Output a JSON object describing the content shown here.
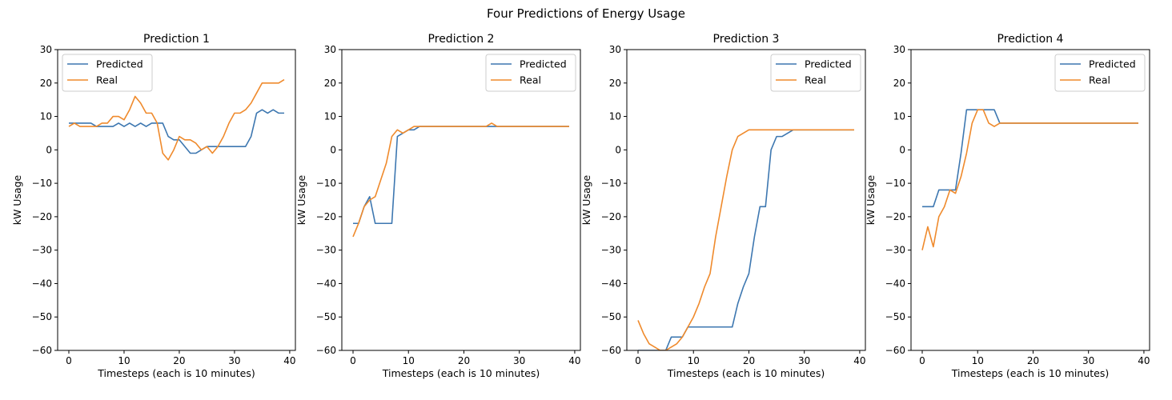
{
  "figure_title": "Four Predictions of Energy Usage",
  "colors": {
    "predicted": "#3d77b0",
    "real": "#ef8a2c"
  },
  "chart_data": [
    {
      "type": "line",
      "title": "Prediction 1",
      "xlabel": "Timesteps (each is 10 minutes)",
      "ylabel": "kW Usage",
      "xlim": [
        0,
        39
      ],
      "ylim": [
        -60,
        30
      ],
      "xticks": [
        0,
        10,
        20,
        30,
        40
      ],
      "yticks": [
        -60,
        -50,
        -40,
        -30,
        -20,
        -10,
        0,
        10,
        20,
        30
      ],
      "legend": "top-left",
      "series": [
        {
          "name": "Predicted",
          "values": [
            8,
            8,
            8,
            8,
            8,
            7,
            7,
            7,
            7,
            8,
            7,
            8,
            7,
            8,
            7,
            8,
            8,
            8,
            4,
            3,
            3,
            1,
            -1,
            -1,
            0,
            1,
            1,
            1,
            1,
            1,
            1,
            1,
            1,
            4,
            11,
            12,
            11,
            12,
            11,
            11
          ]
        },
        {
          "name": "Real",
          "values": [
            7,
            8,
            7,
            7,
            7,
            7,
            8,
            8,
            10,
            10,
            9,
            12,
            16,
            14,
            11,
            11,
            8,
            -1,
            -3,
            0,
            4,
            3,
            3,
            2,
            0,
            1,
            -1,
            1,
            4,
            8,
            11,
            11,
            12,
            14,
            17,
            20,
            20,
            20,
            20,
            21
          ]
        }
      ]
    },
    {
      "type": "line",
      "title": "Prediction 2",
      "xlabel": "Timesteps (each is 10 minutes)",
      "ylabel": "kW Usage",
      "xlim": [
        0,
        39
      ],
      "ylim": [
        -60,
        30
      ],
      "xticks": [
        0,
        10,
        20,
        30,
        40
      ],
      "yticks": [
        -60,
        -50,
        -40,
        -30,
        -20,
        -10,
        0,
        10,
        20,
        30
      ],
      "legend": "top-right",
      "series": [
        {
          "name": "Predicted",
          "values": [
            -22,
            -22,
            -17,
            -14,
            -22,
            -22,
            -22,
            -22,
            4,
            5,
            6,
            6,
            7,
            7,
            7,
            7,
            7,
            7,
            7,
            7,
            7,
            7,
            7,
            7,
            7,
            7,
            7,
            7,
            7,
            7,
            7,
            7,
            7,
            7,
            7,
            7,
            7,
            7,
            7,
            7
          ]
        },
        {
          "name": "Real",
          "values": [
            -26,
            -22,
            -17,
            -15,
            -14,
            -9,
            -4,
            4,
            6,
            5,
            6,
            7,
            7,
            7,
            7,
            7,
            7,
            7,
            7,
            7,
            7,
            7,
            7,
            7,
            7,
            8,
            7,
            7,
            7,
            7,
            7,
            7,
            7,
            7,
            7,
            7,
            7,
            7,
            7,
            7
          ]
        }
      ]
    },
    {
      "type": "line",
      "title": "Prediction 3",
      "xlabel": "Timesteps (each is 10 minutes)",
      "ylabel": "kW Usage",
      "xlim": [
        0,
        39
      ],
      "ylim": [
        -60,
        30
      ],
      "xticks": [
        0,
        10,
        20,
        30,
        40
      ],
      "yticks": [
        -60,
        -50,
        -40,
        -30,
        -20,
        -10,
        0,
        10,
        20,
        30
      ],
      "legend": "top-right",
      "series": [
        {
          "name": "Predicted",
          "values": [
            -60,
            -60,
            -60,
            -60,
            -60,
            -60,
            -56,
            -56,
            -56,
            -53,
            -53,
            -53,
            -53,
            -53,
            -53,
            -53,
            -53,
            -53,
            -46,
            -41,
            -37,
            -26,
            -17,
            -17,
            0,
            4,
            4,
            5,
            6,
            6,
            6,
            6,
            6,
            6,
            6,
            6,
            6,
            6,
            6,
            6
          ]
        },
        {
          "name": "Real",
          "values": [
            -51,
            -55,
            -58,
            -59,
            -60,
            -60,
            -59,
            -58,
            -56,
            -53,
            -50,
            -46,
            -41,
            -37,
            -26,
            -17,
            -8,
            0,
            4,
            5,
            6,
            6,
            6,
            6,
            6,
            6,
            6,
            6,
            6,
            6,
            6,
            6,
            6,
            6,
            6,
            6,
            6,
            6,
            6,
            6
          ]
        }
      ]
    },
    {
      "type": "line",
      "title": "Prediction 4",
      "xlabel": "Timesteps (each is 10 minutes)",
      "ylabel": "kW Usage",
      "xlim": [
        0,
        39
      ],
      "ylim": [
        -60,
        30
      ],
      "xticks": [
        0,
        10,
        20,
        30,
        40
      ],
      "yticks": [
        -60,
        -50,
        -40,
        -30,
        -20,
        -10,
        0,
        10,
        20,
        30
      ],
      "legend": "top-right",
      "series": [
        {
          "name": "Predicted",
          "values": [
            -17,
            -17,
            -17,
            -12,
            -12,
            -12,
            -12,
            -1,
            12,
            12,
            12,
            12,
            12,
            12,
            8,
            8,
            8,
            8,
            8,
            8,
            8,
            8,
            8,
            8,
            8,
            8,
            8,
            8,
            8,
            8,
            8,
            8,
            8,
            8,
            8,
            8,
            8,
            8,
            8,
            8
          ]
        },
        {
          "name": "Real",
          "values": [
            -30,
            -23,
            -29,
            -20,
            -17,
            -12,
            -13,
            -8,
            -1,
            8,
            12,
            12,
            8,
            7,
            8,
            8,
            8,
            8,
            8,
            8,
            8,
            8,
            8,
            8,
            8,
            8,
            8,
            8,
            8,
            8,
            8,
            8,
            8,
            8,
            8,
            8,
            8,
            8,
            8,
            8
          ]
        }
      ]
    }
  ]
}
